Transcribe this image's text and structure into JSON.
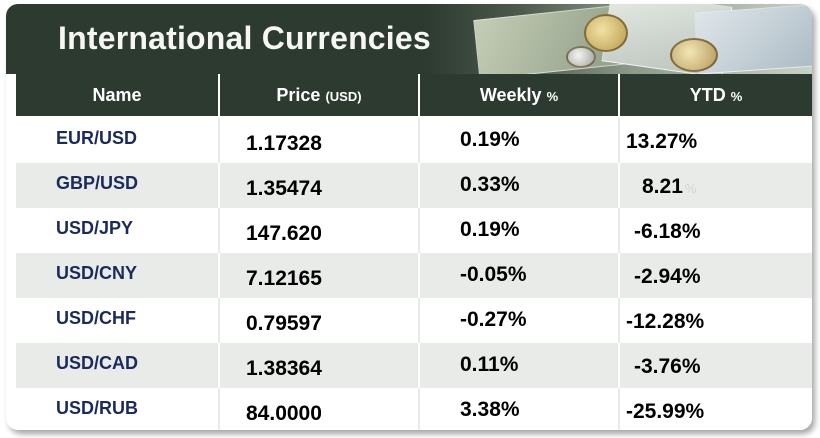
{
  "title": "International Currencies",
  "headers": {
    "name": "Name",
    "price": "Price",
    "price_unit": "(USD)",
    "weekly": "Weekly",
    "weekly_unit": "%",
    "ytd": "YTD",
    "ytd_unit": "%"
  },
  "rows": [
    {
      "name": "EUR/USD",
      "price": "1.17328",
      "weekly": "0.19%",
      "ytd": "13.27%",
      "ytd_suffix": ""
    },
    {
      "name": "GBP/USD",
      "price": "1.35474",
      "weekly": "0.33%",
      "ytd": "8.21",
      "ytd_suffix": "%"
    },
    {
      "name": "USD/JPY",
      "price": "147.620",
      "weekly": "0.19%",
      "ytd": "-6.18%",
      "ytd_suffix": ""
    },
    {
      "name": "USD/CNY",
      "price": "7.12165",
      "weekly": "-0.05%",
      "ytd": "-2.94%",
      "ytd_suffix": ""
    },
    {
      "name": "USD/CHF",
      "price": "0.79597",
      "weekly": "-0.27%",
      "ytd": "-12.28%",
      "ytd_suffix": ""
    },
    {
      "name": "USD/CAD",
      "price": "1.38364",
      "weekly": "0.11%",
      "ytd": "-3.76%",
      "ytd_suffix": ""
    },
    {
      "name": "USD/RUB",
      "price": "84.0000",
      "weekly": "3.38%",
      "ytd": "-25.99%",
      "ytd_suffix": ""
    }
  ],
  "colors": {
    "header_bg": "#2d3a30",
    "row_shade": "#e9ebe9",
    "name_text": "#1b2a5c"
  },
  "icons": {
    "banner_art": "banknotes-and-coins-image"
  }
}
